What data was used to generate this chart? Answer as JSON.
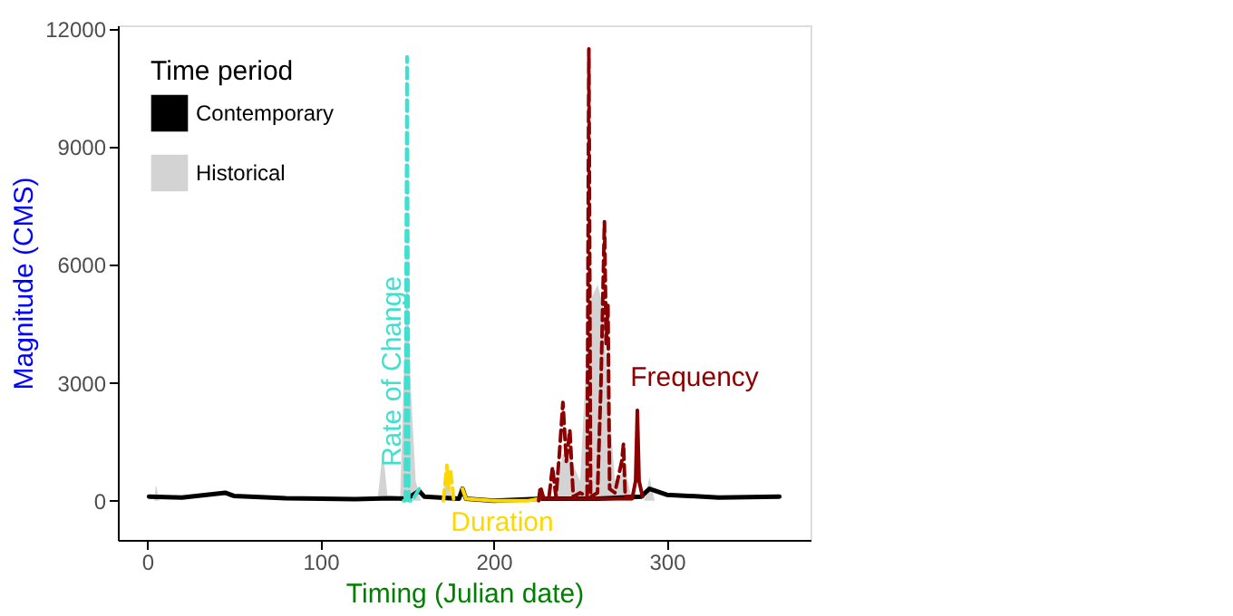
{
  "chart_data": {
    "type": "line",
    "xlabel": "Timing (Julian date)",
    "ylabel": "Magnitude (CMS)",
    "legend_title": "Time period",
    "legend": "top left",
    "grid": false,
    "xlim": [
      -17,
      383
    ],
    "ylim": [
      -1000,
      12100
    ],
    "xticks": [
      0,
      100,
      200,
      300
    ],
    "yticks": [
      0,
      3000,
      6000,
      9000,
      12000
    ],
    "series": [
      {
        "name": "Contemporary",
        "color": "#000000",
        "line_style": "solid",
        "x": [
          1,
          20,
          45,
          50,
          80,
          100,
          120,
          140,
          150,
          157,
          160,
          180,
          182,
          184,
          200,
          228,
          260,
          285,
          290,
          300,
          330,
          365
        ],
        "values": [
          100,
          80,
          200,
          120,
          60,
          50,
          40,
          60,
          50,
          250,
          100,
          50,
          300,
          50,
          0,
          50,
          50,
          100,
          300,
          150,
          80,
          100
        ]
      },
      {
        "name": "Historical",
        "type": "area",
        "color": "#d3d3d3",
        "x": [
          1,
          4,
          5,
          7,
          133,
          136,
          139,
          146,
          148,
          150,
          152,
          155,
          158,
          170,
          173,
          176,
          235,
          240,
          245,
          250,
          255,
          260,
          263,
          266,
          270,
          276,
          280,
          287,
          290,
          293,
          365
        ],
        "values": [
          0,
          0,
          400,
          0,
          0,
          1300,
          0,
          0,
          3000,
          6000,
          3000,
          500,
          0,
          0,
          800,
          0,
          0,
          1200,
          1000,
          500,
          5000,
          5500,
          5000,
          3000,
          500,
          800,
          0,
          0,
          600,
          0,
          0
        ]
      },
      {
        "color": "#40e0d0",
        "line_style": "dashed",
        "x": [
          148,
          149,
          150,
          151,
          153,
          157
        ],
        "values": [
          0,
          0,
          11300,
          0,
          0,
          300
        ]
      },
      {
        "color": "#ffd700",
        "line_style": "solid",
        "x": [
          182,
          184,
          200,
          220,
          227
        ],
        "values": [
          300,
          50,
          0,
          0,
          50
        ]
      },
      {
        "color": "#8b0000",
        "line_style": "dashed",
        "x": [
          226,
          227,
          229,
          232,
          234,
          236,
          238,
          240,
          242,
          244,
          246,
          250,
          254,
          255,
          256,
          260,
          262,
          263,
          264,
          265,
          266,
          267,
          270,
          274,
          275,
          276,
          280
        ],
        "values": [
          0,
          350,
          50,
          100,
          850,
          100,
          1200,
          2500,
          1000,
          1800,
          100,
          200,
          100,
          11500,
          100,
          200,
          3000,
          5000,
          7100,
          4000,
          5000,
          300,
          200,
          1000,
          1450,
          100,
          100
        ]
      },
      {
        "color": "#ffd700",
        "line_style": "dashed",
        "x": [
          171,
          173,
          174,
          175,
          177
        ],
        "values": [
          0,
          900,
          300,
          800,
          0
        ]
      },
      {
        "color": "#8b0000",
        "line_style": "solid",
        "x": [
          228,
          280,
          282,
          283,
          284,
          286
        ],
        "values": [
          50,
          50,
          500,
          2300,
          500,
          100
        ]
      }
    ],
    "annotations": [
      "Rate of Change",
      "Duration",
      "Frequency"
    ]
  }
}
